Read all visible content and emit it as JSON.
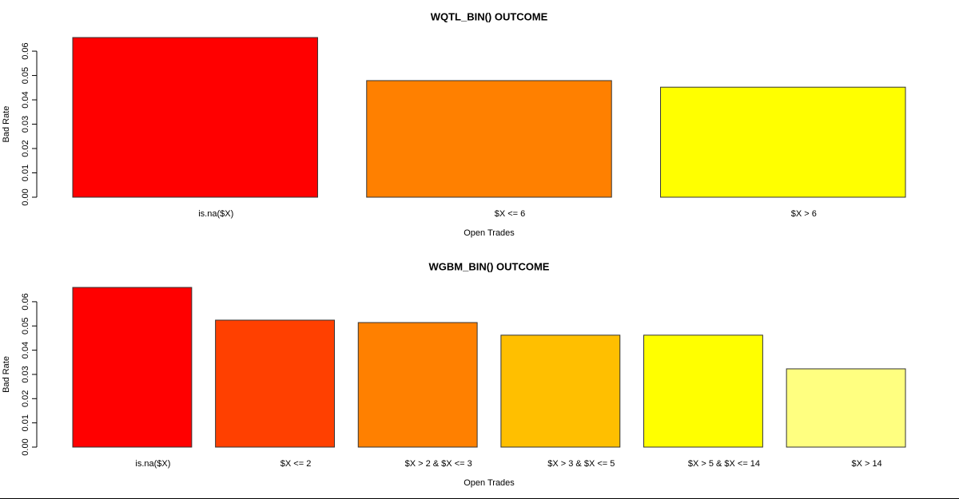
{
  "chart_data": [
    {
      "type": "bar",
      "title": "WQTL_BIN() OUTCOME",
      "x_label": "Open Trades",
      "y_label": "Bad Rate",
      "categories": [
        "is.na($X)",
        "$X <= 6",
        "$X > 6"
      ],
      "values": [
        0.0656,
        0.0479,
        0.0452
      ],
      "colors": [
        "#FF0000",
        "#FF8000",
        "#FFFF00"
      ],
      "ylim": [
        0,
        0.0656
      ],
      "yticks": [
        {
          "value": 0,
          "label": "0.00"
        },
        {
          "value": 0.01,
          "label": "0.01"
        },
        {
          "value": 0.02,
          "label": "0.02"
        },
        {
          "value": 0.03,
          "label": "0.03"
        },
        {
          "value": 0.04,
          "label": "0.04"
        },
        {
          "value": 0.05,
          "label": "0.05"
        },
        {
          "value": 0.06,
          "label": "0.06"
        }
      ]
    },
    {
      "type": "bar",
      "title": "WGBM_BIN() OUTCOME",
      "x_label": "Open Trades",
      "y_label": "Bad Rate",
      "categories": [
        "is.na($X)",
        "$X <= 2",
        "$X > 2 & $X <= 3",
        "$X > 3 & $X <= 5",
        "$X > 5 & $X <= 14",
        "$X > 14"
      ],
      "values": [
        0.0659,
        0.0524,
        0.0514,
        0.0462,
        0.0462,
        0.0323
      ],
      "colors": [
        "#FF0000",
        "#FF4000",
        "#FF8000",
        "#FFBF00",
        "#FFFF00",
        "#FFFF80"
      ],
      "ylim": [
        0,
        0.0659
      ],
      "yticks": [
        {
          "value": 0,
          "label": "0.00"
        },
        {
          "value": 0.01,
          "label": "0.01"
        },
        {
          "value": 0.02,
          "label": "0.02"
        },
        {
          "value": 0.03,
          "label": "0.03"
        },
        {
          "value": 0.04,
          "label": "0.04"
        },
        {
          "value": 0.05,
          "label": "0.05"
        },
        {
          "value": 0.06,
          "label": "0.06"
        }
      ]
    }
  ]
}
